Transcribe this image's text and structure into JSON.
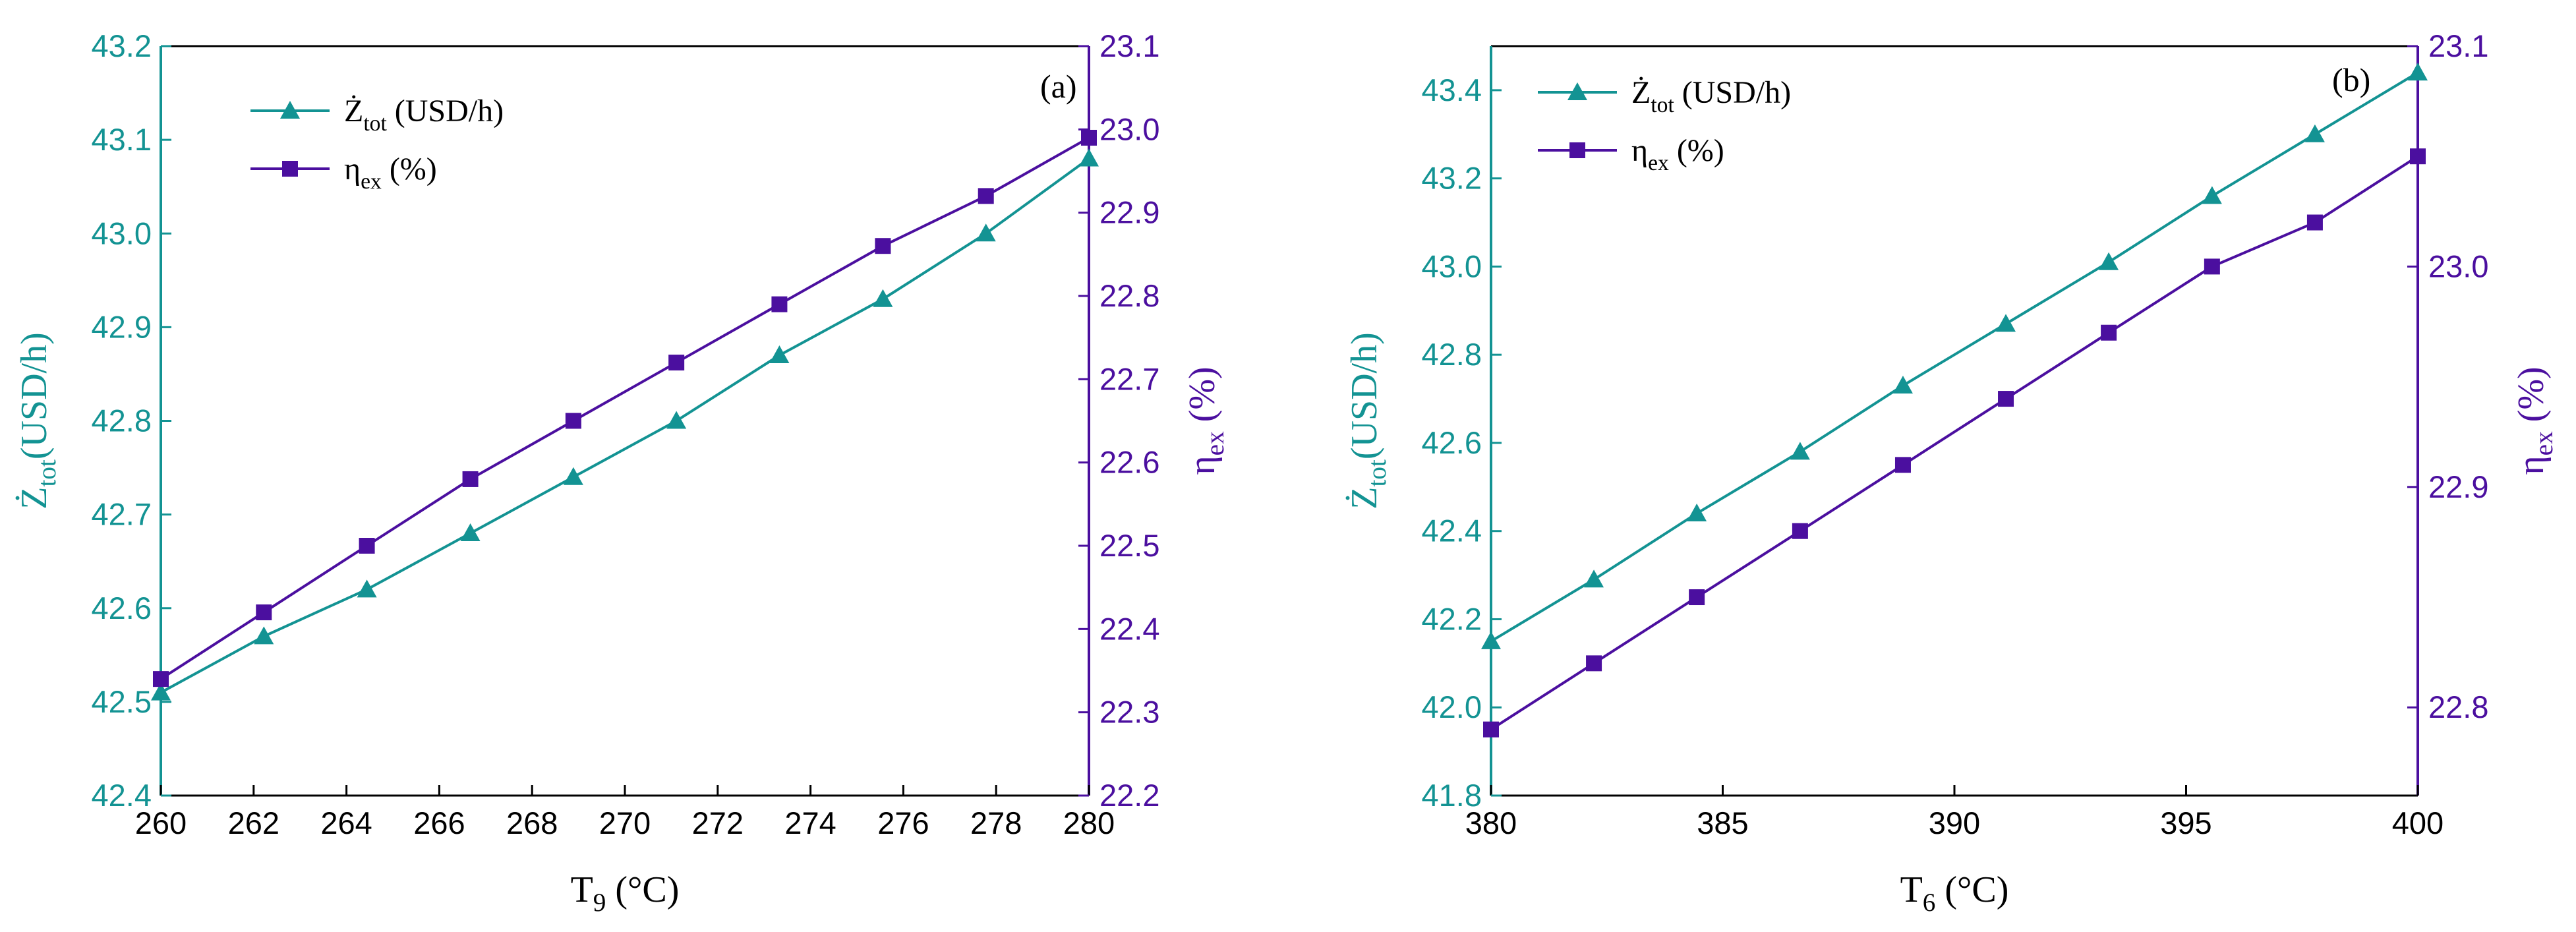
{
  "colors": {
    "teal": "#139393",
    "purple": "#4b0f9f",
    "axis": "#000000"
  },
  "chart_data": [
    {
      "type": "line",
      "panel_label": "(a)",
      "xlabel": {
        "main": "T",
        "sub": "9",
        "unit": " (°C)"
      },
      "ylabel_left": {
        "main": "Ż",
        "sub": "tot",
        "unit": "(USD/h)"
      },
      "ylabel_right": {
        "main": "η",
        "sub": "ex",
        "unit": " (%)"
      },
      "xlim": [
        260,
        280
      ],
      "ylim_left": [
        42.4,
        43.2
      ],
      "ylim_right": [
        22.2,
        23.1
      ],
      "xticks": [
        260,
        262,
        264,
        266,
        268,
        270,
        272,
        274,
        276,
        278,
        280
      ],
      "xtick_labels": [
        "260",
        "262",
        "264",
        "266",
        "268",
        "270",
        "272",
        "274",
        "276",
        "278",
        "280"
      ],
      "yticks_left": [
        42.4,
        42.5,
        42.6,
        42.7,
        42.8,
        42.9,
        43.0,
        43.1,
        43.2
      ],
      "ytick_labels_left": [
        "42.4",
        "42.5",
        "42.6",
        "42.7",
        "42.8",
        "42.9",
        "43.0",
        "43.1",
        "43.2"
      ],
      "yticks_right": [
        22.2,
        22.3,
        22.4,
        22.5,
        22.6,
        22.7,
        22.8,
        22.9,
        23.0,
        23.1
      ],
      "ytick_labels_right": [
        "22.2",
        "22.3",
        "22.4",
        "22.5",
        "22.6",
        "22.7",
        "22.8",
        "22.9",
        "23.0",
        "23.1"
      ],
      "series": [
        {
          "name": "Ż_tot (USD/h)",
          "legend": {
            "main": "Ż",
            "sub": "tot",
            "unit": " (USD/h)"
          },
          "axis": "left",
          "marker": "triangle",
          "color": "#139393",
          "x": [
            260,
            262.22,
            264.44,
            266.67,
            268.89,
            271.11,
            273.33,
            275.56,
            277.78,
            280
          ],
          "values": [
            42.51,
            42.57,
            42.62,
            42.68,
            42.74,
            42.8,
            42.87,
            42.93,
            43.0,
            43.08
          ]
        },
        {
          "name": "η_ex (%)",
          "legend": {
            "main": "η",
            "sub": "ex",
            "unit": " (%)"
          },
          "axis": "right",
          "marker": "square",
          "color": "#4b0f9f",
          "x": [
            260,
            262.22,
            264.44,
            266.67,
            268.89,
            271.11,
            273.33,
            275.56,
            277.78,
            280
          ],
          "values": [
            22.34,
            22.42,
            22.5,
            22.58,
            22.65,
            22.72,
            22.79,
            22.86,
            22.92,
            22.99
          ]
        }
      ]
    },
    {
      "type": "line",
      "panel_label": "(b)",
      "xlabel": {
        "main": "T",
        "sub": "6",
        "unit": " (°C)"
      },
      "ylabel_left": {
        "main": "Ż",
        "sub": "tot",
        "unit": "(USD/h)"
      },
      "ylabel_right": {
        "main": "η",
        "sub": "ex",
        "unit": " (%)"
      },
      "xlim": [
        380,
        400
      ],
      "ylim_left": [
        41.8,
        43.5
      ],
      "ylim_right": [
        22.76,
        23.1
      ],
      "xticks": [
        380,
        385,
        390,
        395,
        400
      ],
      "xtick_labels": [
        "380",
        "385",
        "390",
        "395",
        "400"
      ],
      "yticks_left": [
        41.8,
        42.0,
        42.2,
        42.4,
        42.6,
        42.8,
        43.0,
        43.2,
        43.4
      ],
      "ytick_labels_left": [
        "41.8",
        "42.0",
        "42.2",
        "42.4",
        "42.6",
        "42.8",
        "43.0",
        "43.2",
        "43.4"
      ],
      "yticks_right": [
        22.8,
        22.9,
        23.0,
        23.1
      ],
      "ytick_labels_right": [
        "22.8",
        "22.9",
        "23.0",
        "23.1"
      ],
      "series": [
        {
          "name": "Ż_tot (USD/h)",
          "legend": {
            "main": "Ż",
            "sub": "tot",
            "unit": " (USD/h)"
          },
          "axis": "left",
          "marker": "triangle",
          "color": "#139393",
          "x": [
            380,
            382.22,
            384.44,
            386.67,
            388.89,
            391.11,
            393.33,
            395.56,
            397.78,
            400
          ],
          "values": [
            42.15,
            42.29,
            42.44,
            42.58,
            42.73,
            42.87,
            43.01,
            43.16,
            43.3,
            43.44
          ]
        },
        {
          "name": "η_ex (%)",
          "legend": {
            "main": "η",
            "sub": "ex",
            "unit": " (%)"
          },
          "axis": "right",
          "marker": "square",
          "color": "#4b0f9f",
          "x": [
            380,
            382.22,
            384.44,
            386.67,
            388.89,
            391.11,
            393.33,
            395.56,
            397.78,
            400
          ],
          "values": [
            22.79,
            22.82,
            22.85,
            22.88,
            22.91,
            22.94,
            22.97,
            23.0,
            23.02,
            23.05
          ]
        }
      ]
    }
  ]
}
